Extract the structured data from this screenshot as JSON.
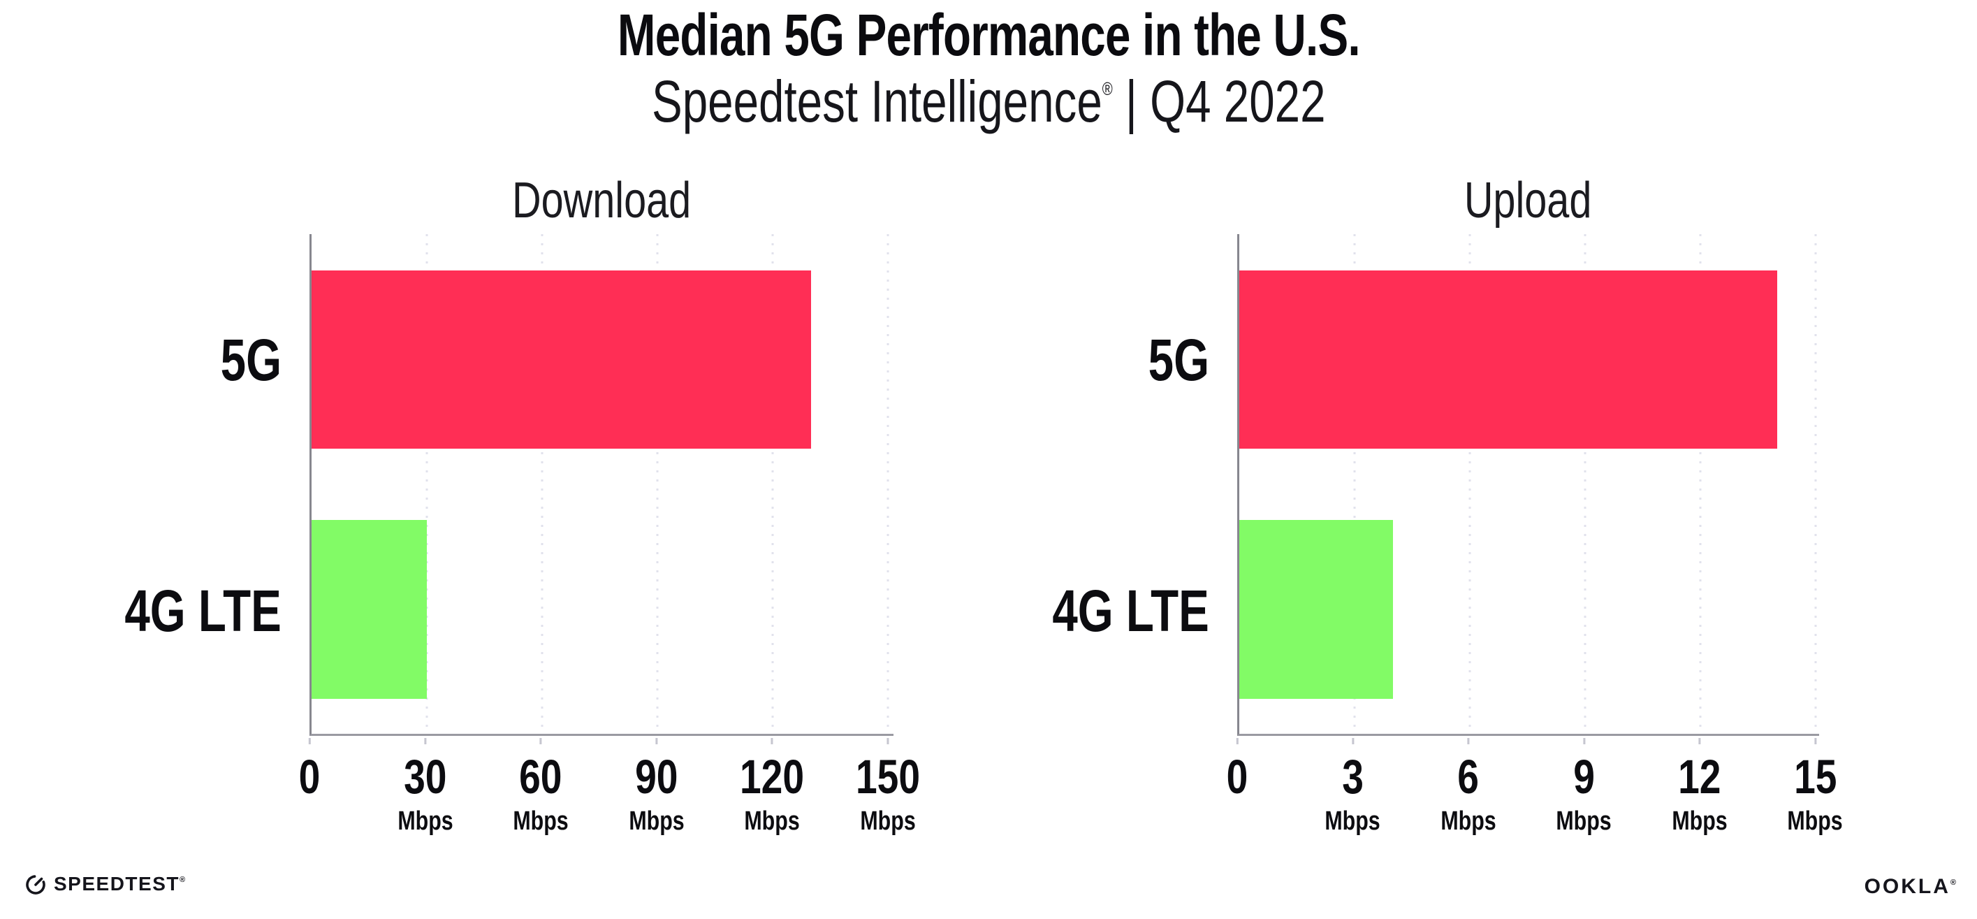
{
  "header": {
    "title": "Median 5G Performance in the U.S.",
    "subtitle_brand": "Speedtest Intelligence",
    "subtitle_reg": "®",
    "subtitle_rest": " | Q4 2022"
  },
  "footer": {
    "speedtest_label": "SPEEDTEST",
    "speedtest_reg": "®",
    "ookla_label": "OOKLA",
    "ookla_reg": "®"
  },
  "colors": {
    "bar_5g": "#FF2E55",
    "bar_4g_lte": "#82FB66",
    "axis_spine": "#87878f",
    "gridline": "#e1e2ec",
    "text": "#0c0c10"
  },
  "chart_data": [
    {
      "type": "bar",
      "orientation": "horizontal",
      "title": "Download",
      "categories": [
        "5G",
        "4G LTE"
      ],
      "values": [
        130,
        30
      ],
      "unit": "Mbps",
      "xticks": [
        0,
        30,
        60,
        90,
        120,
        150
      ],
      "xlim": [
        0,
        151.5
      ],
      "bar_colors": [
        "#FF2E55",
        "#82FB66"
      ],
      "grid": "vertical-dotted",
      "legend": "none",
      "bar_height_pct": 35.7,
      "bar_center_pct": [
        25.1,
        75.1
      ]
    },
    {
      "type": "bar",
      "orientation": "horizontal",
      "title": "Upload",
      "categories": [
        "5G",
        "4G LTE"
      ],
      "values": [
        14,
        4
      ],
      "unit": "Mbps",
      "xticks": [
        0,
        3,
        6,
        9,
        12,
        15
      ],
      "xlim": [
        0,
        15.1
      ],
      "bar_colors": [
        "#FF2E55",
        "#82FB66"
      ],
      "grid": "vertical-dotted",
      "legend": "none",
      "bar_height_pct": 35.7,
      "bar_center_pct": [
        25.1,
        75.1
      ]
    }
  ]
}
